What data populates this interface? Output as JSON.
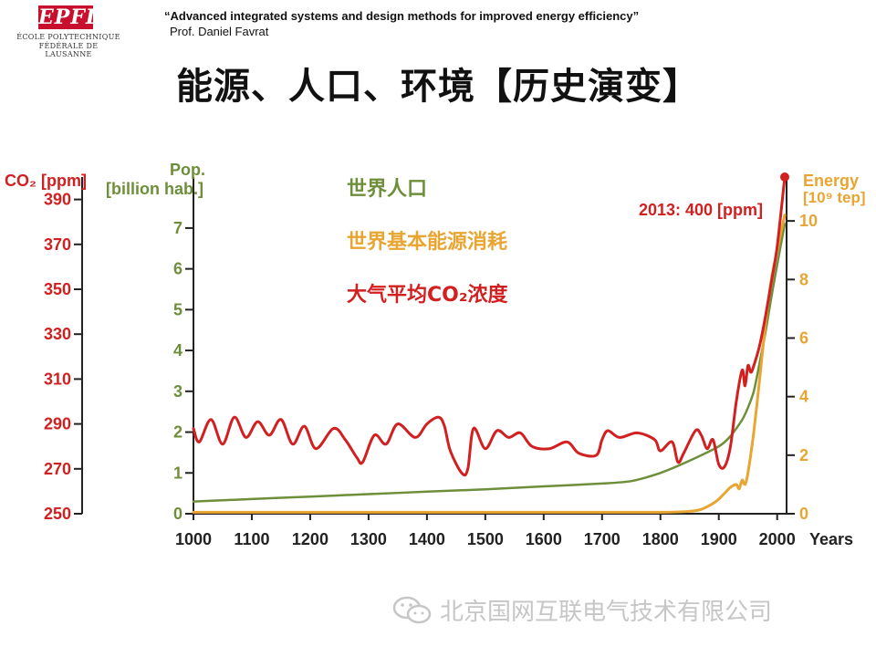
{
  "header": {
    "logo_text": "EPFL",
    "logo_line1": "ÉCOLE POLYTECHNIQUE",
    "logo_line2": "FÉDÉRALE DE LAUSANNE",
    "title": "“Advanced integrated systems and design methods for improved energy efficiency”",
    "author": "Prof. Daniel Favrat"
  },
  "page_title": "能源、人口、环境【历史演变】",
  "watermark": {
    "text": "北京国网互联电气技术有限公司",
    "icon": "wechat-icon"
  },
  "colors": {
    "co2": "#d21f1f",
    "population": "#6e8f3a",
    "energy": "#e8a531",
    "axis": "#222222"
  },
  "chart_data": {
    "type": "line",
    "x_label": "Years",
    "x_ticks": [
      "1000",
      "1100",
      "1200",
      "1300",
      "1400",
      "1500",
      "1600",
      "1700",
      "1800",
      "1900",
      "2000"
    ],
    "xlim": [
      1000,
      2013
    ],
    "axes": {
      "co2": {
        "label": "CO₂ [ppm]",
        "ticks": [
          "250",
          "270",
          "290",
          "310",
          "330",
          "350",
          "370",
          "390"
        ],
        "ylim": [
          250,
          400
        ]
      },
      "population": {
        "label_line1": "Pop.",
        "label_line2": "[billion hab.]",
        "ticks": [
          "0",
          "1",
          "2",
          "3",
          "4",
          "5",
          "6",
          "7"
        ],
        "ylim": [
          0,
          8.25
        ]
      },
      "energy": {
        "label_line1": "Energy",
        "label_line2": "[10⁹ tep]",
        "ticks": [
          "0",
          "2",
          "4",
          "6",
          "8",
          "10"
        ],
        "ylim": [
          0,
          11.5
        ]
      }
    },
    "legend": [
      "世界人口",
      "世界基本能源消耗",
      "大气平均CO₂浓度"
    ],
    "annotation": "2013: 400 [ppm]",
    "series": [
      {
        "name": "世界人口",
        "axis": "population",
        "x": [
          1000,
          1100,
          1200,
          1300,
          1400,
          1500,
          1600,
          1700,
          1750,
          1800,
          1850,
          1900,
          1920,
          1940,
          1950,
          1960,
          1970,
          1980,
          1990,
          2000,
          2013
        ],
        "values": [
          0.3,
          0.36,
          0.42,
          0.48,
          0.54,
          0.6,
          0.67,
          0.74,
          0.8,
          1.0,
          1.3,
          1.65,
          1.9,
          2.3,
          2.6,
          3.0,
          3.7,
          4.45,
          5.3,
          6.1,
          7.1
        ]
      },
      {
        "name": "世界基本能源消耗",
        "axis": "energy",
        "x": [
          1000,
          1200,
          1400,
          1600,
          1800,
          1850,
          1870,
          1890,
          1900,
          1910,
          1920,
          1930,
          1935,
          1940,
          1945,
          1950,
          1960,
          1970,
          1980,
          1990,
          2000,
          2013
        ],
        "values": [
          0.05,
          0.05,
          0.05,
          0.05,
          0.05,
          0.08,
          0.15,
          0.35,
          0.5,
          0.7,
          0.9,
          1.0,
          0.85,
          1.15,
          1.0,
          1.4,
          2.8,
          4.6,
          6.5,
          8.0,
          9.0,
          10.2
        ]
      },
      {
        "name": "大气平均CO₂浓度",
        "axis": "co2",
        "x": [
          1000,
          1010,
          1030,
          1050,
          1070,
          1090,
          1110,
          1130,
          1150,
          1170,
          1190,
          1210,
          1240,
          1260,
          1280,
          1290,
          1310,
          1330,
          1350,
          1380,
          1400,
          1420,
          1430,
          1440,
          1460,
          1470,
          1480,
          1500,
          1520,
          1540,
          1560,
          1580,
          1610,
          1640,
          1660,
          1690,
          1700,
          1710,
          1730,
          1760,
          1790,
          1800,
          1820,
          1830,
          1840,
          1860,
          1870,
          1880,
          1890,
          1900,
          1910,
          1920,
          1930,
          1940,
          1945,
          1950,
          1955,
          1960,
          1970,
          1980,
          1990,
          2000,
          2013
        ],
        "values": [
          288,
          282,
          292,
          281,
          293,
          284,
          291,
          285,
          292,
          281,
          289,
          279,
          288,
          283,
          275,
          273,
          285,
          281,
          290,
          284,
          290,
          293,
          289,
          278,
          268,
          270,
          288,
          279,
          287,
          284,
          286,
          280,
          279,
          282,
          277,
          276,
          283,
          287,
          284,
          286,
          283,
          278,
          282,
          273,
          277,
          287,
          285,
          279,
          283,
          272,
          271,
          280,
          300,
          314,
          307,
          316,
          313,
          316,
          325,
          338,
          353,
          369,
          400
        ]
      }
    ]
  }
}
